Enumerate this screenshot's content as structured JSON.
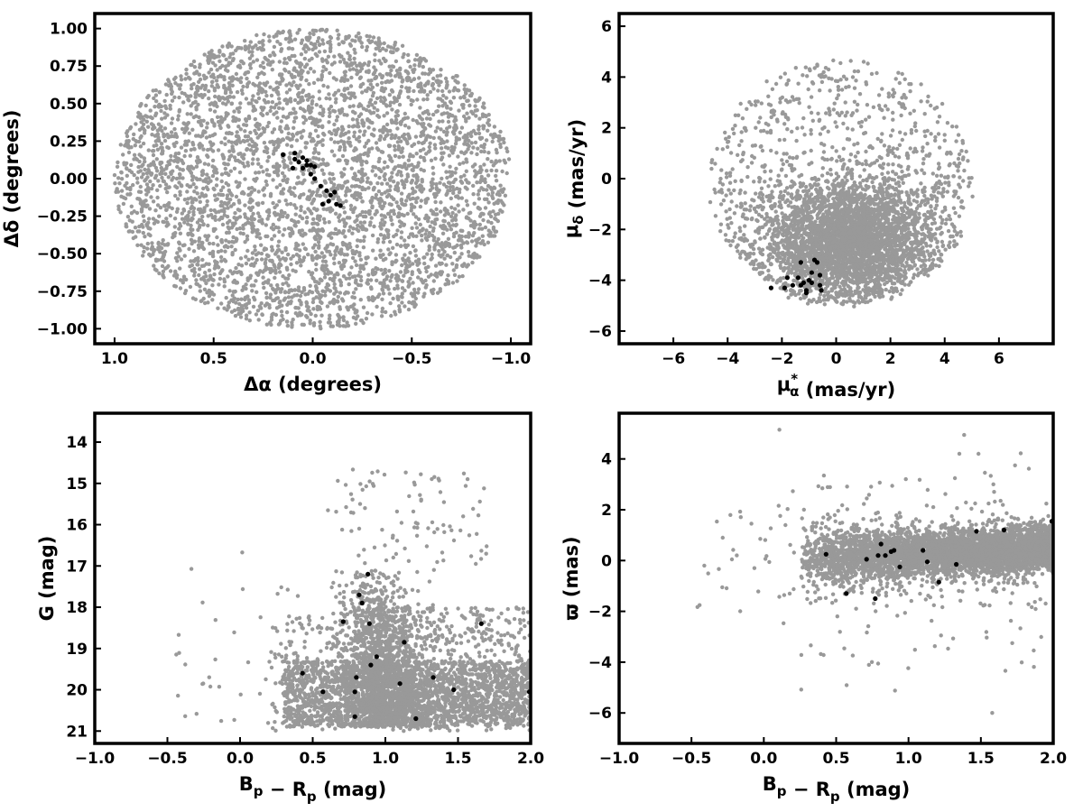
{
  "chart_data": [
    {
      "id": "sky",
      "type": "scatter",
      "xlabel": "Δα (degrees)",
      "ylabel": "Δδ (degrees)",
      "xlim": [
        1.1,
        -1.1
      ],
      "ylim": [
        -1.1,
        1.1
      ],
      "x_inverted": true,
      "xticks": [
        1.0,
        0.5,
        0.0,
        -0.5,
        -1.0
      ],
      "xtick_labels": [
        "1.0",
        "0.5",
        "0.0",
        "−0.5",
        "−1.0"
      ],
      "yticks": [
        -1.0,
        -0.75,
        -0.5,
        -0.25,
        0.0,
        0.25,
        0.5,
        0.75,
        1.0
      ],
      "ytick_labels": [
        "−1.00",
        "−0.75",
        "−0.50",
        "−0.25",
        "0.00",
        "0.25",
        "0.50",
        "0.75",
        "1.00"
      ],
      "grid": false,
      "background_population": {
        "distribution": "uniform disk",
        "center": [
          0,
          0
        ],
        "radius": 1.0,
        "color": "#999999"
      },
      "members": {
        "color": "#000000",
        "points": [
          [
            0.15,
            0.16
          ],
          [
            0.09,
            0.17
          ],
          [
            0.09,
            0.13
          ],
          [
            0.07,
            0.11
          ],
          [
            0.05,
            0.14
          ],
          [
            0.03,
            0.09
          ],
          [
            0.03,
            0.12
          ],
          [
            0.05,
            0.07
          ],
          [
            0.01,
            0.09
          ],
          [
            -0.01,
            0.08
          ],
          [
            0.01,
            0.03
          ],
          [
            -0.01,
            0.0
          ],
          [
            0.1,
            0.07
          ],
          [
            -0.04,
            -0.05
          ],
          [
            -0.07,
            -0.08
          ],
          [
            -0.09,
            -0.11
          ],
          [
            -0.08,
            -0.15
          ],
          [
            -0.05,
            -0.17
          ],
          [
            -0.11,
            -0.09
          ],
          [
            -0.12,
            -0.17
          ],
          [
            -0.14,
            -0.18
          ]
        ]
      }
    },
    {
      "id": "proper-motion",
      "type": "scatter",
      "xlabel": "μ*α (mas/yr)",
      "ylabel": "μδ (mas/yr)",
      "xlim": [
        -8,
        8
      ],
      "ylim": [
        -6.5,
        6.5
      ],
      "xticks": [
        -6,
        -4,
        -2,
        0,
        2,
        4,
        6
      ],
      "xtick_labels": [
        "−6",
        "−4",
        "−2",
        "0",
        "2",
        "4",
        "6"
      ],
      "yticks": [
        -6,
        -4,
        -2,
        0,
        2,
        4,
        6
      ],
      "ytick_labels": [
        "−6",
        "−4",
        "−2",
        "0",
        "2",
        "4",
        "6"
      ],
      "grid": false,
      "background_population": {
        "distribution": "clustered near (0.5, -2.5), truncated at radius 5 mas/yr",
        "color": "#999999"
      },
      "members": {
        "color": "#000000",
        "points": [
          [
            -2.4,
            -4.3
          ],
          [
            -1.9,
            -4.3
          ],
          [
            -1.8,
            -3.9
          ],
          [
            -1.6,
            -4.2
          ],
          [
            -1.4,
            -3.9
          ],
          [
            -1.3,
            -3.3
          ],
          [
            -1.3,
            -4.2
          ],
          [
            -1.2,
            -4.1
          ],
          [
            -1.1,
            -4.4
          ],
          [
            -1.0,
            -4.0
          ],
          [
            -0.9,
            -3.7
          ],
          [
            -0.9,
            -4.1
          ],
          [
            -0.8,
            -3.2
          ],
          [
            -0.7,
            -3.3
          ],
          [
            -0.6,
            -4.2
          ],
          [
            -0.6,
            -3.8
          ],
          [
            -1.1,
            -4.5
          ],
          [
            -0.55,
            -4.4
          ]
        ]
      }
    },
    {
      "id": "cmd",
      "type": "scatter",
      "xlabel": "Bp − Rp (mag)",
      "ylabel": "G (mag)",
      "xlim": [
        -1.0,
        2.0
      ],
      "ylim": [
        21.3,
        13.3
      ],
      "y_inverted": true,
      "xticks": [
        -1.0,
        -0.5,
        0.0,
        0.5,
        1.0,
        1.5,
        2.0
      ],
      "xtick_labels": [
        "−1.0",
        "−0.5",
        "0.0",
        "0.5",
        "1.0",
        "1.5",
        "2.0"
      ],
      "yticks": [
        14,
        15,
        16,
        17,
        18,
        19,
        20,
        21
      ],
      "ytick_labels": [
        "14",
        "15",
        "16",
        "17",
        "18",
        "19",
        "20",
        "21"
      ],
      "grid": false,
      "background_population": {
        "distribution": "field colour-magnitude diagram",
        "color": "#999999"
      },
      "members": {
        "color": "#000000",
        "points": [
          [
            0.79,
            20.65
          ],
          [
            1.21,
            20.7
          ],
          [
            0.57,
            20.05
          ],
          [
            0.79,
            20.05
          ],
          [
            1.1,
            19.85
          ],
          [
            1.47,
            20.0
          ],
          [
            1.99,
            20.05
          ],
          [
            0.43,
            19.6
          ],
          [
            0.8,
            19.7
          ],
          [
            1.33,
            19.7
          ],
          [
            0.9,
            19.4
          ],
          [
            0.94,
            19.2
          ],
          [
            1.13,
            18.85
          ],
          [
            0.71,
            18.35
          ],
          [
            0.89,
            18.4
          ],
          [
            1.66,
            18.4
          ],
          [
            0.84,
            17.9
          ],
          [
            0.82,
            17.7
          ],
          [
            0.88,
            17.2
          ]
        ]
      }
    },
    {
      "id": "parallax",
      "type": "scatter",
      "xlabel": "Bp − Rp (mag)",
      "ylabel": "ϖ (mas)",
      "xlim": [
        -1.0,
        2.0
      ],
      "ylim": [
        -7.2,
        5.8
      ],
      "xticks": [
        -1.0,
        -0.5,
        0.0,
        0.5,
        1.0,
        1.5,
        2.0
      ],
      "xtick_labels": [
        "−1.0",
        "−0.5",
        "0.0",
        "0.5",
        "1.0",
        "1.5",
        "2.0"
      ],
      "yticks": [
        -6,
        -4,
        -2,
        0,
        2,
        4
      ],
      "ytick_labels": [
        "−6",
        "−4",
        "−2",
        "0",
        "2",
        "4"
      ],
      "grid": false,
      "background_population": {
        "distribution": "band around ϖ≈0, spread increasing with colour",
        "color": "#999999"
      },
      "members": {
        "color": "#000000",
        "points": [
          [
            0.43,
            0.25
          ],
          [
            0.57,
            -1.3
          ],
          [
            0.71,
            0.05
          ],
          [
            0.77,
            -1.5
          ],
          [
            0.79,
            0.2
          ],
          [
            0.81,
            0.65
          ],
          [
            0.84,
            0.2
          ],
          [
            0.88,
            0.35
          ],
          [
            0.9,
            0.4
          ],
          [
            0.94,
            -0.25
          ],
          [
            1.1,
            0.4
          ],
          [
            1.13,
            -0.05
          ],
          [
            1.21,
            -0.85
          ],
          [
            1.33,
            -0.15
          ],
          [
            1.47,
            1.15
          ],
          [
            1.66,
            1.2
          ],
          [
            1.99,
            1.55
          ]
        ]
      }
    }
  ]
}
